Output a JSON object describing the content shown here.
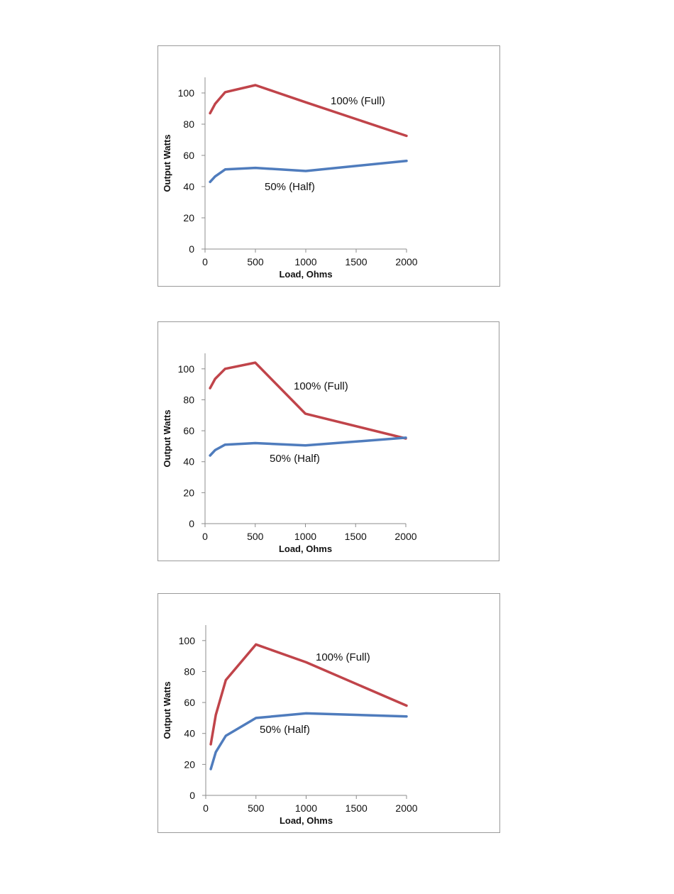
{
  "colors": {
    "full": "#c0444a",
    "half": "#4f7cbd",
    "axis": "#8c8c8c"
  },
  "chart_data": [
    {
      "type": "line",
      "xlabel": "Load, Ohms",
      "ylabel": "Output Watts",
      "xlim": [
        0,
        2000
      ],
      "ylim": [
        0,
        110
      ],
      "x_ticks": [
        0,
        500,
        1000,
        1500,
        2000
      ],
      "y_ticks": [
        0,
        20,
        40,
        60,
        80,
        100
      ],
      "series": [
        {
          "name": "100% (Full)",
          "x": [
            50,
            100,
            200,
            500,
            1000,
            2000
          ],
          "y": [
            87,
            93,
            100.5,
            105,
            94,
            72.5
          ]
        },
        {
          "name": "50% (Half)",
          "x": [
            50,
            100,
            200,
            500,
            1000,
            2000
          ],
          "y": [
            43,
            46.5,
            51,
            52,
            50,
            56.5
          ]
        }
      ]
    },
    {
      "type": "line",
      "xlabel": "Load, Ohms",
      "ylabel": "Output Watts",
      "xlim": [
        0,
        2000
      ],
      "ylim": [
        0,
        110
      ],
      "x_ticks": [
        0,
        500,
        1000,
        1500,
        2000
      ],
      "y_ticks": [
        0,
        20,
        40,
        60,
        80,
        100
      ],
      "series": [
        {
          "name": "100% (Full)",
          "x": [
            50,
            100,
            200,
            500,
            1000,
            2000
          ],
          "y": [
            87.5,
            93.5,
            100,
            104,
            71,
            55
          ]
        },
        {
          "name": "50% (Half)",
          "x": [
            50,
            100,
            200,
            500,
            1000,
            2000
          ],
          "y": [
            44,
            47.5,
            51,
            52,
            50.5,
            55.5
          ]
        }
      ]
    },
    {
      "type": "line",
      "xlabel": "Load, Ohms",
      "ylabel": "Output Watts",
      "xlim": [
        0,
        2000
      ],
      "ylim": [
        0,
        110
      ],
      "x_ticks": [
        0,
        500,
        1000,
        1500,
        2000
      ],
      "y_ticks": [
        0,
        20,
        40,
        60,
        80,
        100
      ],
      "series": [
        {
          "name": "100% (Full)",
          "x": [
            50,
            100,
            200,
            500,
            1000,
            2000
          ],
          "y": [
            33,
            52,
            74.5,
            97.5,
            86,
            58
          ]
        },
        {
          "name": "50% (Half)",
          "x": [
            50,
            100,
            200,
            500,
            1000,
            2000
          ],
          "y": [
            17,
            28,
            38.5,
            50,
            53,
            51
          ]
        }
      ]
    }
  ]
}
